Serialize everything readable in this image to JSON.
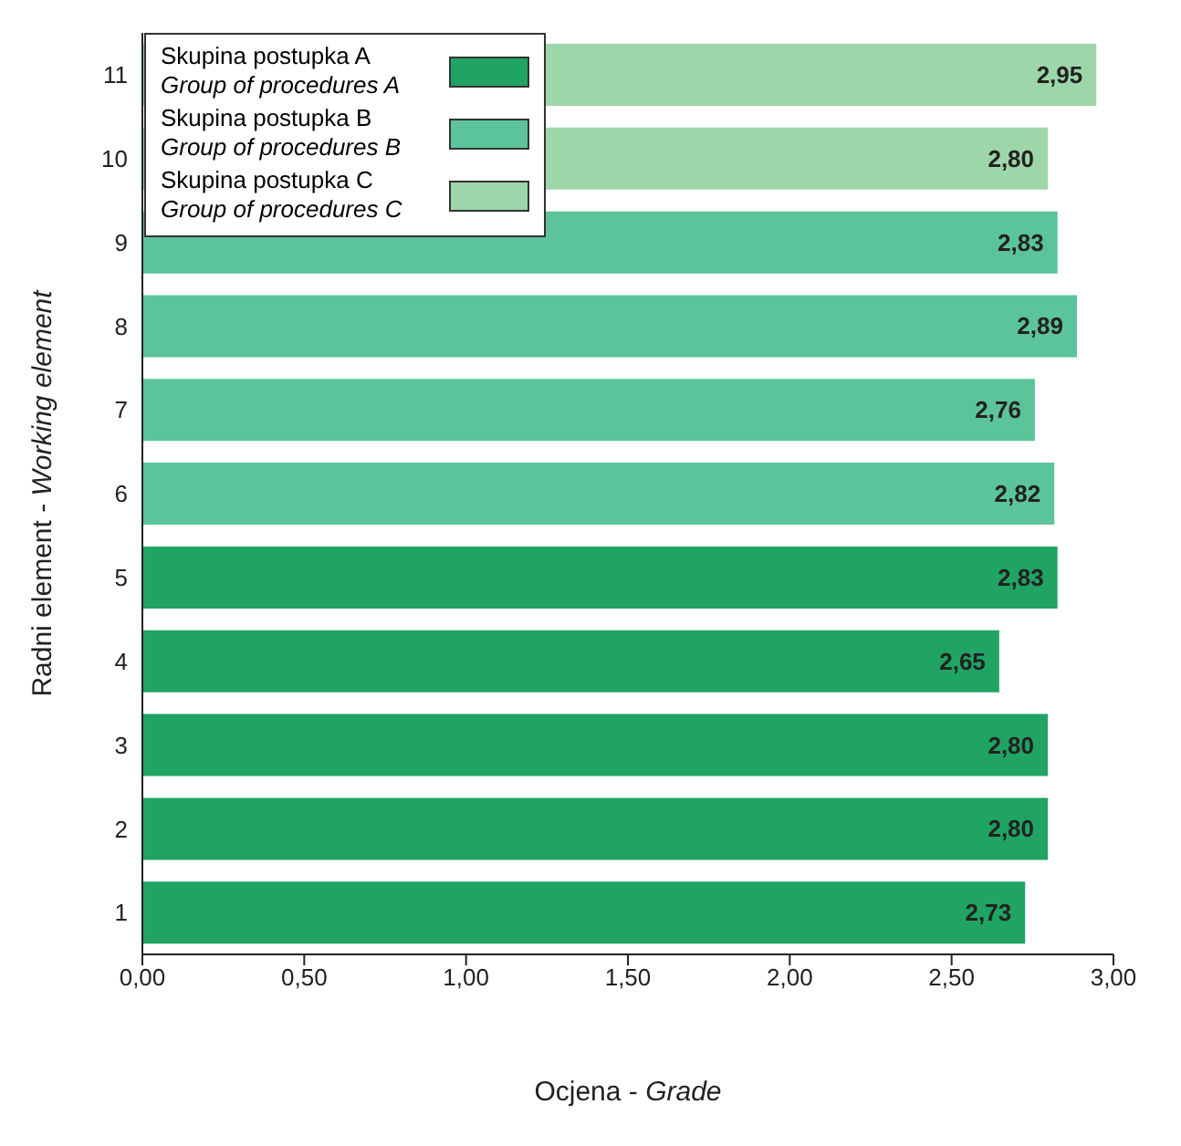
{
  "chart_data": {
    "type": "bar",
    "orientation": "horizontal",
    "stacked": true,
    "xlabel": "Ocjena - Grade",
    "ylabel": "Radni element - Working element",
    "categories": [
      "11",
      "10",
      "9",
      "8",
      "7",
      "6",
      "5",
      "4",
      "3",
      "2",
      "1"
    ],
    "series": [
      {
        "name": "Skupina postupka A\nGroup of procedures A",
        "color": "#1fa463",
        "values": [
          null,
          null,
          null,
          null,
          null,
          null,
          2.83,
          2.65,
          2.8,
          2.8,
          2.73
        ],
        "value_labels": [
          null,
          null,
          null,
          null,
          null,
          null,
          "2,83",
          "2,65",
          "2,80",
          "2,80",
          "2,73"
        ]
      },
      {
        "name": "Skupina postupka B\nGroup of procedures B",
        "color": "#5cc49a",
        "values": [
          null,
          null,
          2.83,
          2.89,
          2.76,
          2.82,
          null,
          null,
          null,
          null,
          null
        ],
        "value_labels": [
          null,
          null,
          "2,83",
          "2,89",
          "2,76",
          "2,82",
          null,
          null,
          null,
          null,
          null
        ]
      },
      {
        "name": "Skupina postupka C\nGroup of procedures C",
        "color": "#9dd6a8",
        "values": [
          2.95,
          2.8,
          null,
          null,
          null,
          null,
          null,
          null,
          null,
          null,
          null
        ],
        "value_labels": [
          "2,95",
          "2,80",
          null,
          null,
          null,
          null,
          null,
          null,
          null,
          null,
          null
        ]
      }
    ],
    "xlim": [
      0,
      3
    ],
    "xticks": [
      {
        "value": 0,
        "label": "0,00"
      },
      {
        "value": 0.5,
        "label": "0,50"
      },
      {
        "value": 1,
        "label": "1,00"
      },
      {
        "value": 1.5,
        "label": "1,50"
      },
      {
        "value": 2,
        "label": "2,00"
      },
      {
        "value": 2.5,
        "label": "2,50"
      },
      {
        "value": 3,
        "label": "3,00"
      }
    ],
    "legend": "top left",
    "grid": false
  }
}
